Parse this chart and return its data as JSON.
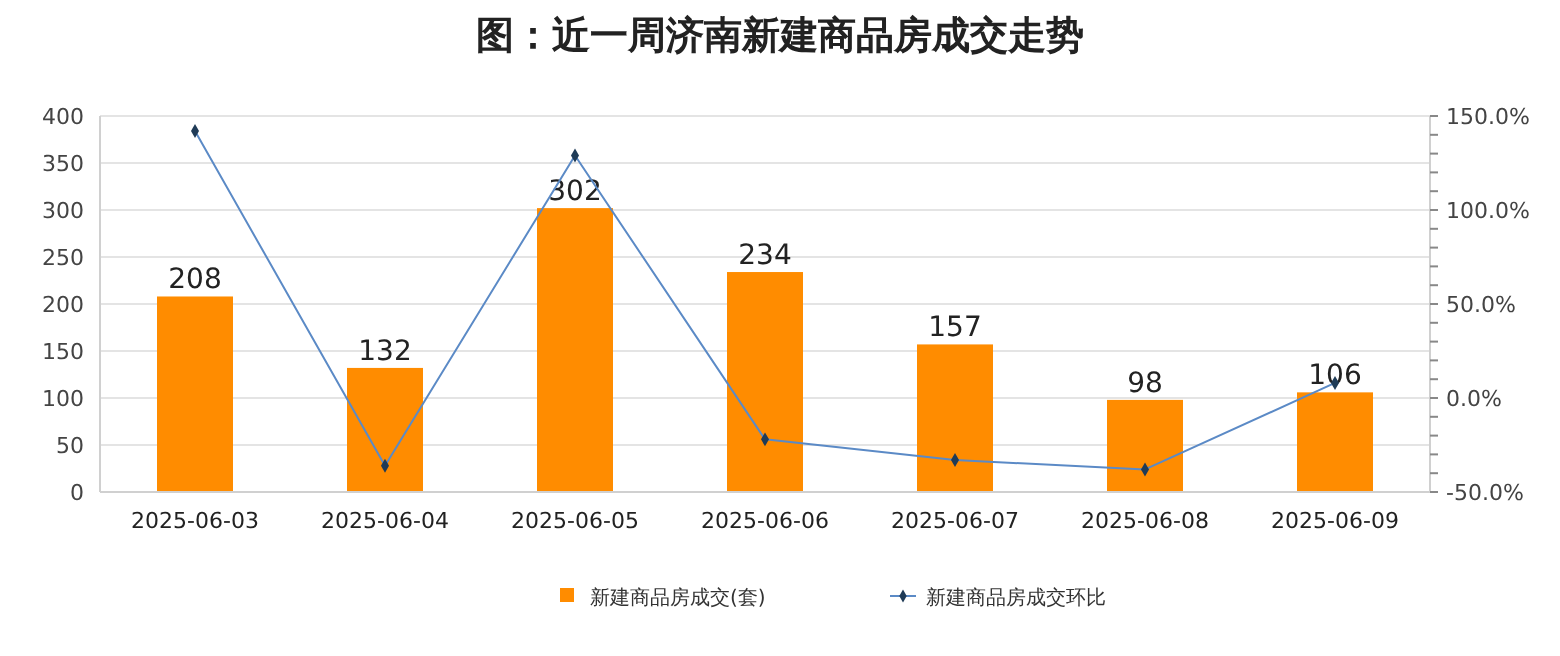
{
  "chart_data": {
    "type": "bar",
    "title": "图：近一周济南新建商品房成交走势",
    "categories": [
      "2025-06-03",
      "2025-06-04",
      "2025-06-05",
      "2025-06-06",
      "2025-06-07",
      "2025-06-08",
      "2025-06-09"
    ],
    "series": [
      {
        "name": "新建商品房成交(套)",
        "color": "#ff8c00",
        "values": [
          208,
          132,
          302,
          234,
          157,
          98,
          106
        ],
        "value_labels": [
          "208",
          "132",
          "302",
          "234",
          "157",
          "98",
          "106"
        ]
      },
      {
        "name": "新建商品房成交环比",
        "type": "line",
        "axis": "y2",
        "color": "#5b8ac6",
        "marker": "diamond",
        "values": [
          142,
          -36,
          129,
          -22,
          -33,
          -38,
          8
        ]
      }
    ],
    "ylim": [
      0,
      400
    ],
    "yticks": [
      0,
      50,
      100,
      150,
      200,
      250,
      300,
      350,
      400
    ],
    "y2lim": [
      -50,
      150
    ],
    "y2ticks": [
      {
        "value": -50,
        "label": "-50.0%"
      },
      {
        "value": -40,
        "label": null
      },
      {
        "value": -30,
        "label": null
      },
      {
        "value": -20,
        "label": null
      },
      {
        "value": -10,
        "label": null
      },
      {
        "value": 0,
        "label": "0.0%"
      },
      {
        "value": 10,
        "label": null
      },
      {
        "value": 20,
        "label": null
      },
      {
        "value": 30,
        "label": null
      },
      {
        "value": 40,
        "label": null
      },
      {
        "value": 50,
        "label": "50.0%"
      },
      {
        "value": 60,
        "label": null
      },
      {
        "value": 70,
        "label": null
      },
      {
        "value": 80,
        "label": null
      },
      {
        "value": 90,
        "label": null
      },
      {
        "value": 100,
        "label": "100.0%"
      },
      {
        "value": 110,
        "label": null
      },
      {
        "value": 120,
        "label": null
      },
      {
        "value": 130,
        "label": null
      },
      {
        "value": 140,
        "label": null
      },
      {
        "value": 150,
        "label": "150.0%"
      }
    ],
    "grid": "y",
    "legend": "bottom"
  }
}
